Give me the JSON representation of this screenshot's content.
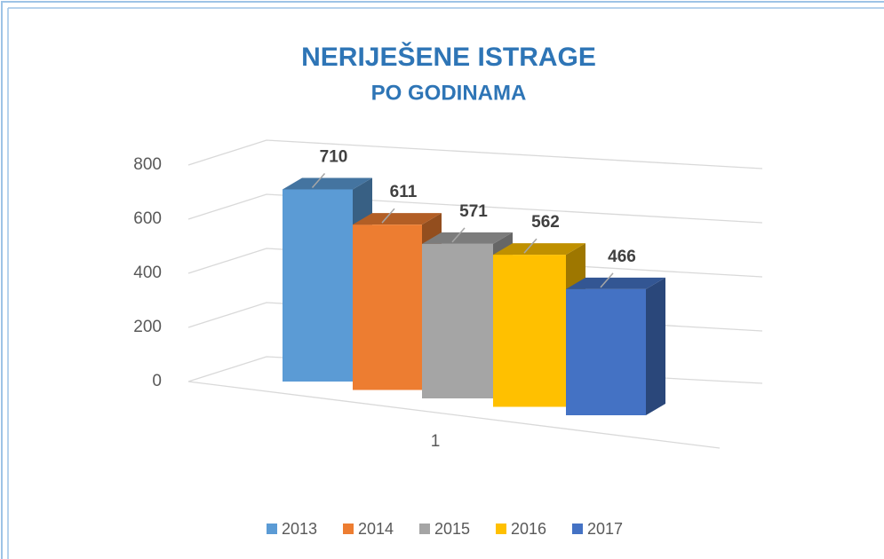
{
  "chart_data": {
    "type": "bar3d",
    "title": "NERIJEŠENE ISTRAGE",
    "subtitle": "PO GODINAMA",
    "categories": [
      "1"
    ],
    "series": [
      {
        "name": "2013",
        "color": "#5b9bd5",
        "values": [
          710
        ]
      },
      {
        "name": "2014",
        "color": "#ed7d31",
        "values": [
          611
        ]
      },
      {
        "name": "2015",
        "color": "#a5a5a5",
        "values": [
          571
        ]
      },
      {
        "name": "2016",
        "color": "#ffc000",
        "values": [
          562
        ]
      },
      {
        "name": "2017",
        "color": "#4472c4",
        "values": [
          466
        ]
      }
    ],
    "ylim": [
      0,
      800
    ],
    "yticks": [
      0,
      200,
      400,
      600,
      800
    ],
    "grid": true,
    "legend": "bottom"
  }
}
